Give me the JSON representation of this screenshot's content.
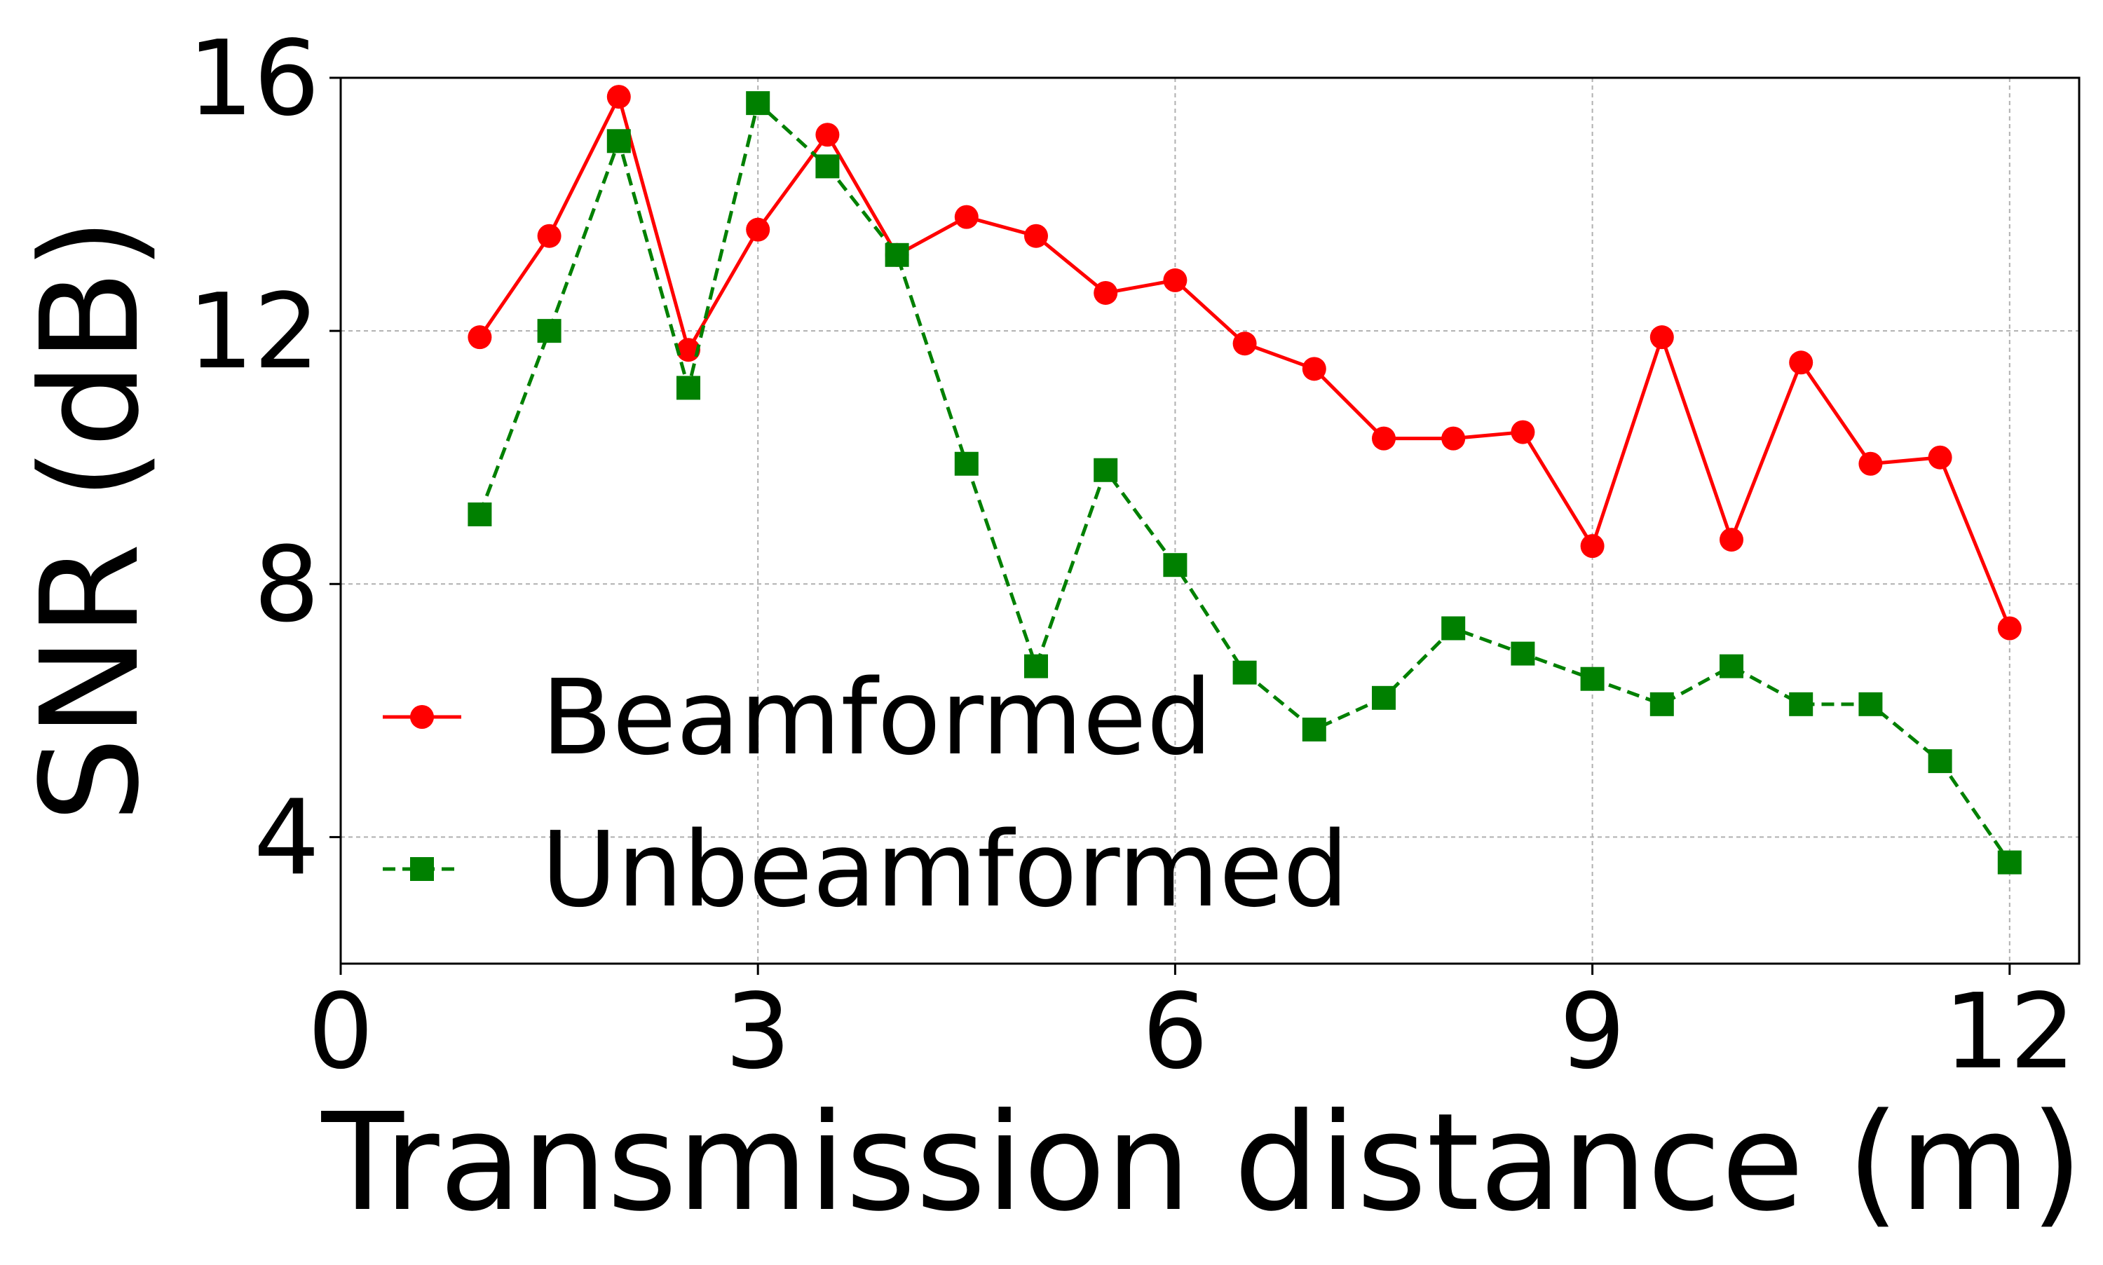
{
  "chart_data": {
    "type": "line",
    "xlabel": "Transmission distance (m)",
    "ylabel": "SNR (dB)",
    "xlim": [
      0,
      12.5
    ],
    "ylim": [
      2,
      16
    ],
    "xticks": [
      0,
      3,
      6,
      9,
      12
    ],
    "yticks": [
      4,
      8,
      12,
      16
    ],
    "grid": true,
    "legend_position": "lower-left",
    "x": [
      1,
      1.5,
      2,
      2.5,
      3,
      3.5,
      4,
      4.5,
      5,
      5.5,
      6,
      6.5,
      7,
      7.5,
      8,
      8.5,
      9,
      9.5,
      10,
      10.5,
      11,
      11.5,
      12
    ],
    "series": [
      {
        "name": "Beamformed",
        "color": "#ff0000",
        "line_style": "solid",
        "marker": "circle",
        "values": [
          11.9,
          13.5,
          15.7,
          11.7,
          13.6,
          15.1,
          13.2,
          13.8,
          13.5,
          12.6,
          12.8,
          11.8,
          11.4,
          10.3,
          10.3,
          10.4,
          8.6,
          11.9,
          8.7,
          11.5,
          9.9,
          10.0,
          7.3
        ]
      },
      {
        "name": "Unbeamformed",
        "color": "#008000",
        "line_style": "dashed",
        "marker": "square",
        "values": [
          9.1,
          12.0,
          15.0,
          11.1,
          15.6,
          14.6,
          13.2,
          9.9,
          6.7,
          9.8,
          8.3,
          6.6,
          5.7,
          6.2,
          7.3,
          6.9,
          6.5,
          6.1,
          6.7,
          6.1,
          6.1,
          5.2,
          3.6
        ]
      }
    ]
  }
}
